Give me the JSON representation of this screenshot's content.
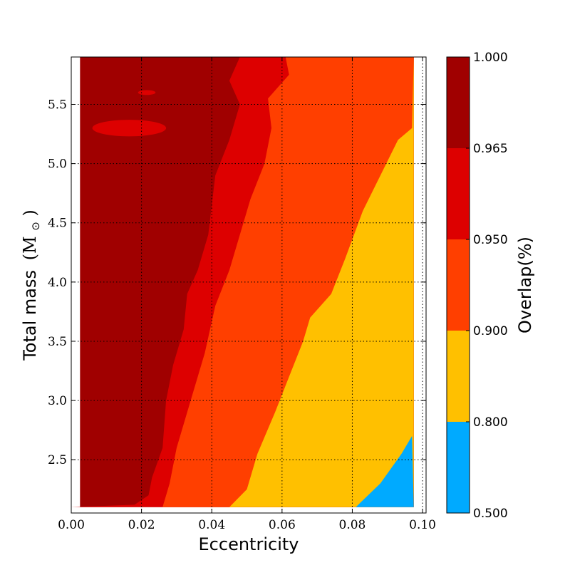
{
  "chart_data": {
    "type": "contourf",
    "xlabel": "Eccentricity",
    "ylabel": "Total mass",
    "ylabel_symbol": "(M",
    "ylabel_symbol_sub": "⊙",
    "ylabel_symbol_close": ")",
    "xlim": [
      0.0,
      0.101
    ],
    "ylim": [
      2.05,
      5.9
    ],
    "xticks": [
      "0.00",
      "0.02",
      "0.04",
      "0.06",
      "0.08",
      "0.10"
    ],
    "yticks": [
      "2.5",
      "3.0",
      "3.5",
      "4.0",
      "4.5",
      "5.0",
      "5.5"
    ],
    "grid": true,
    "colorbar": {
      "label": "Overlap(%)",
      "levels": [
        "0.500",
        "0.800",
        "0.900",
        "0.950",
        "0.965",
        "1.000"
      ],
      "colors": [
        "#00aaff",
        "#ffc000",
        "#ff3f00",
        "#dd0000",
        "#a00000"
      ]
    },
    "boundaries": {
      "level_0965": [
        [
          0.0,
          2.1
        ],
        [
          0.018,
          2.12
        ],
        [
          0.022,
          2.2
        ],
        [
          0.023,
          2.35
        ],
        [
          0.026,
          2.6
        ],
        [
          0.027,
          3.0
        ],
        [
          0.029,
          3.3
        ],
        [
          0.032,
          3.6
        ],
        [
          0.033,
          3.9
        ],
        [
          0.036,
          4.1
        ],
        [
          0.039,
          4.4
        ],
        [
          0.041,
          4.9
        ],
        [
          0.045,
          5.2
        ],
        [
          0.048,
          5.5
        ],
        [
          0.045,
          5.7
        ],
        [
          0.048,
          5.9
        ]
      ],
      "level_0950": [
        [
          0.026,
          2.1
        ],
        [
          0.028,
          2.3
        ],
        [
          0.03,
          2.6
        ],
        [
          0.034,
          3.0
        ],
        [
          0.038,
          3.4
        ],
        [
          0.041,
          3.8
        ],
        [
          0.045,
          4.1
        ],
        [
          0.048,
          4.4
        ],
        [
          0.051,
          4.7
        ],
        [
          0.055,
          5.0
        ],
        [
          0.057,
          5.3
        ],
        [
          0.056,
          5.55
        ],
        [
          0.062,
          5.75
        ],
        [
          0.061,
          5.9
        ]
      ],
      "level_0900": [
        [
          0.045,
          2.1
        ],
        [
          0.05,
          2.25
        ],
        [
          0.053,
          2.55
        ],
        [
          0.058,
          2.9
        ],
        [
          0.062,
          3.2
        ],
        [
          0.066,
          3.5
        ],
        [
          0.068,
          3.7
        ],
        [
          0.074,
          3.9
        ],
        [
          0.078,
          4.2
        ],
        [
          0.083,
          4.6
        ],
        [
          0.088,
          4.9
        ],
        [
          0.093,
          5.2
        ],
        [
          0.097,
          5.3
        ]
      ],
      "level_0800": [
        [
          0.081,
          2.1
        ],
        [
          0.088,
          2.3
        ],
        [
          0.094,
          2.55
        ],
        [
          0.097,
          2.7
        ]
      ]
    },
    "islands": [
      {
        "level": "0.950-0.965",
        "x": [
          0.006,
          0.027
        ],
        "y": [
          5.23,
          5.37
        ]
      },
      {
        "level": "0.950-0.965",
        "x": [
          0.019,
          0.024
        ],
        "y": [
          5.58,
          5.62
        ]
      },
      {
        "level": "0.950-0.965",
        "x": [
          0.052,
          0.056
        ],
        "y": [
          5.78,
          5.82
        ]
      }
    ],
    "data_extent": {
      "x": [
        0.0025,
        0.0975
      ],
      "y": [
        2.1,
        5.9
      ]
    }
  }
}
